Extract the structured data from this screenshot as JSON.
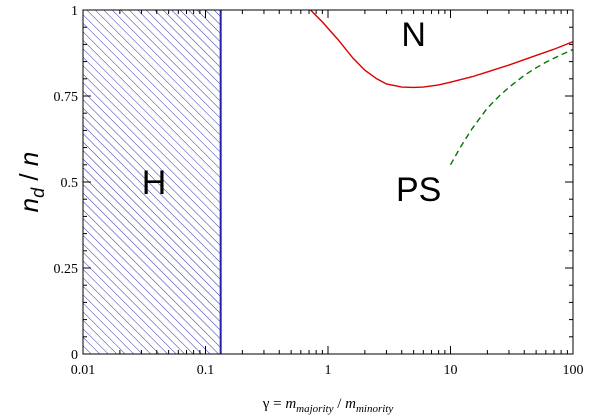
{
  "chart_data": {
    "type": "line",
    "x_scale": "log",
    "xlim": [
      0.01,
      100
    ],
    "ylim": [
      0,
      1
    ],
    "x_ticks": [
      {
        "value": 0.01,
        "label": "0.01"
      },
      {
        "value": 0.1,
        "label": "0.1"
      },
      {
        "value": 1,
        "label": "1"
      },
      {
        "value": 10,
        "label": "10"
      },
      {
        "value": 100,
        "label": "100"
      }
    ],
    "y_ticks": [
      {
        "value": 0,
        "label": "0"
      },
      {
        "value": 0.25,
        "label": "0.25"
      },
      {
        "value": 0.5,
        "label": "0.5"
      },
      {
        "value": 0.75,
        "label": "0.75"
      },
      {
        "value": 1,
        "label": "1"
      }
    ],
    "xlabel": {
      "gamma": "γ = ",
      "m1": "m",
      "sub1": "majority",
      "slash": " / ",
      "m2": "m",
      "sub2": "minority"
    },
    "ylabel": {
      "n1": "n",
      "sub": "d",
      "slash": " / ",
      "n2": "n"
    },
    "grid": false,
    "hatched_region": {
      "x_range": [
        0.01,
        0.133
      ],
      "color": "#3333aa",
      "boundary_x": 0.133
    },
    "series": [
      {
        "style": "solid",
        "color": "#dd0000",
        "points": [
          {
            "x": 0.72,
            "y": 1.0
          },
          {
            "x": 0.9,
            "y": 0.965
          },
          {
            "x": 1.2,
            "y": 0.915
          },
          {
            "x": 1.6,
            "y": 0.86
          },
          {
            "x": 2.0,
            "y": 0.825
          },
          {
            "x": 2.5,
            "y": 0.8
          },
          {
            "x": 3.0,
            "y": 0.785
          },
          {
            "x": 4.0,
            "y": 0.776
          },
          {
            "x": 5.0,
            "y": 0.775
          },
          {
            "x": 6.0,
            "y": 0.776
          },
          {
            "x": 8.0,
            "y": 0.782
          },
          {
            "x": 10.0,
            "y": 0.79
          },
          {
            "x": 15.0,
            "y": 0.806
          },
          {
            "x": 20.0,
            "y": 0.82
          },
          {
            "x": 30.0,
            "y": 0.84
          },
          {
            "x": 50.0,
            "y": 0.868
          },
          {
            "x": 70.0,
            "y": 0.886
          },
          {
            "x": 100.0,
            "y": 0.908
          }
        ]
      },
      {
        "style": "dashed",
        "color": "#007700",
        "points": [
          {
            "x": 10.0,
            "y": 0.55
          },
          {
            "x": 12.0,
            "y": 0.6
          },
          {
            "x": 15.0,
            "y": 0.655
          },
          {
            "x": 20.0,
            "y": 0.715
          },
          {
            "x": 25.0,
            "y": 0.75
          },
          {
            "x": 30.0,
            "y": 0.775
          },
          {
            "x": 40.0,
            "y": 0.81
          },
          {
            "x": 50.0,
            "y": 0.832
          },
          {
            "x": 60.0,
            "y": 0.848
          },
          {
            "x": 80.0,
            "y": 0.87
          },
          {
            "x": 100.0,
            "y": 0.885
          }
        ]
      }
    ],
    "annotations": [
      {
        "text": "H",
        "x": 0.038,
        "y": 0.5
      },
      {
        "text": "PS",
        "x": 5.5,
        "y": 0.48
      },
      {
        "text": "N",
        "x": 5.0,
        "y": 0.93
      }
    ]
  }
}
